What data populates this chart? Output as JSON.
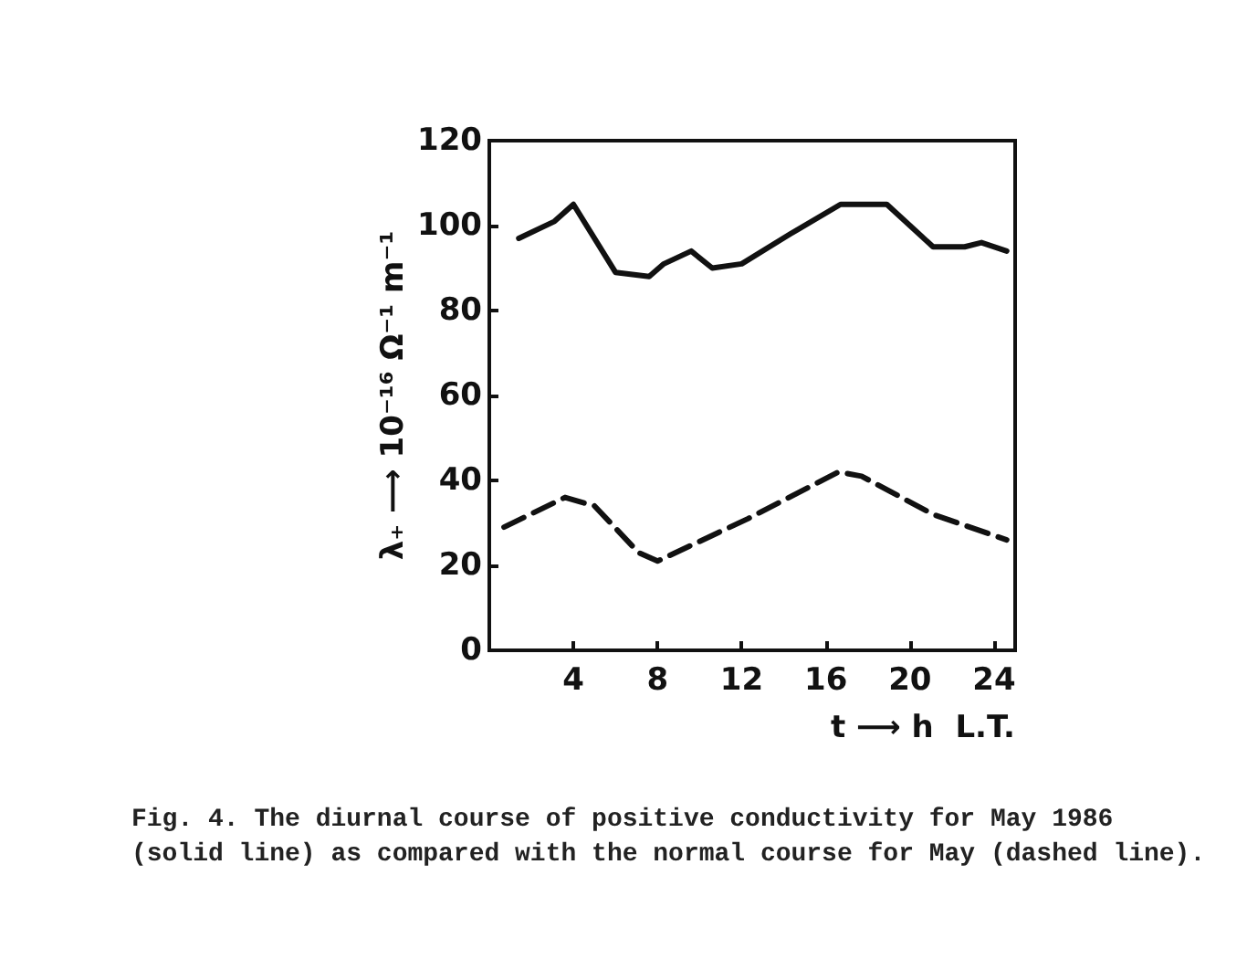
{
  "chart_data": {
    "type": "line",
    "xlabel": "t ⟶ h  L.T.",
    "ylabel": "λ₊ ⟶ 10⁻¹⁶ Ω⁻¹ m⁻¹",
    "xlim": [
      0,
      25
    ],
    "xticks": [
      4,
      8,
      12,
      16,
      20,
      24
    ],
    "ylim": [
      0,
      120
    ],
    "yticks": [
      0,
      20,
      40,
      60,
      80,
      100,
      120
    ],
    "grid": false,
    "marker": "none",
    "series": [
      {
        "color": "#111111",
        "line_style": "solid",
        "x": [
          1.4,
          3.1,
          4,
          6,
          7.6,
          8.3,
          9.6,
          10.6,
          12,
          14.3,
          16.7,
          18.9,
          21.1,
          22.6,
          23.4,
          24.6
        ],
        "values": [
          97,
          101,
          105,
          89,
          88,
          91,
          94,
          90,
          91,
          98,
          105,
          105,
          95,
          95,
          96,
          94
        ]
      },
      {
        "color": "#111111",
        "line_style": "dashed",
        "x": [
          0.7,
          3.6,
          5,
          7.1,
          8,
          12.3,
          16.6,
          17.7,
          21.1,
          24.6
        ],
        "values": [
          29,
          36,
          34,
          23,
          21,
          31,
          42,
          41,
          32,
          26
        ]
      }
    ],
    "annotations": [
      "Fig. 4.  The diurnal course of positive conductivity for May 1986 (solid line) as compared with the normal course for May (dashed line)."
    ]
  }
}
